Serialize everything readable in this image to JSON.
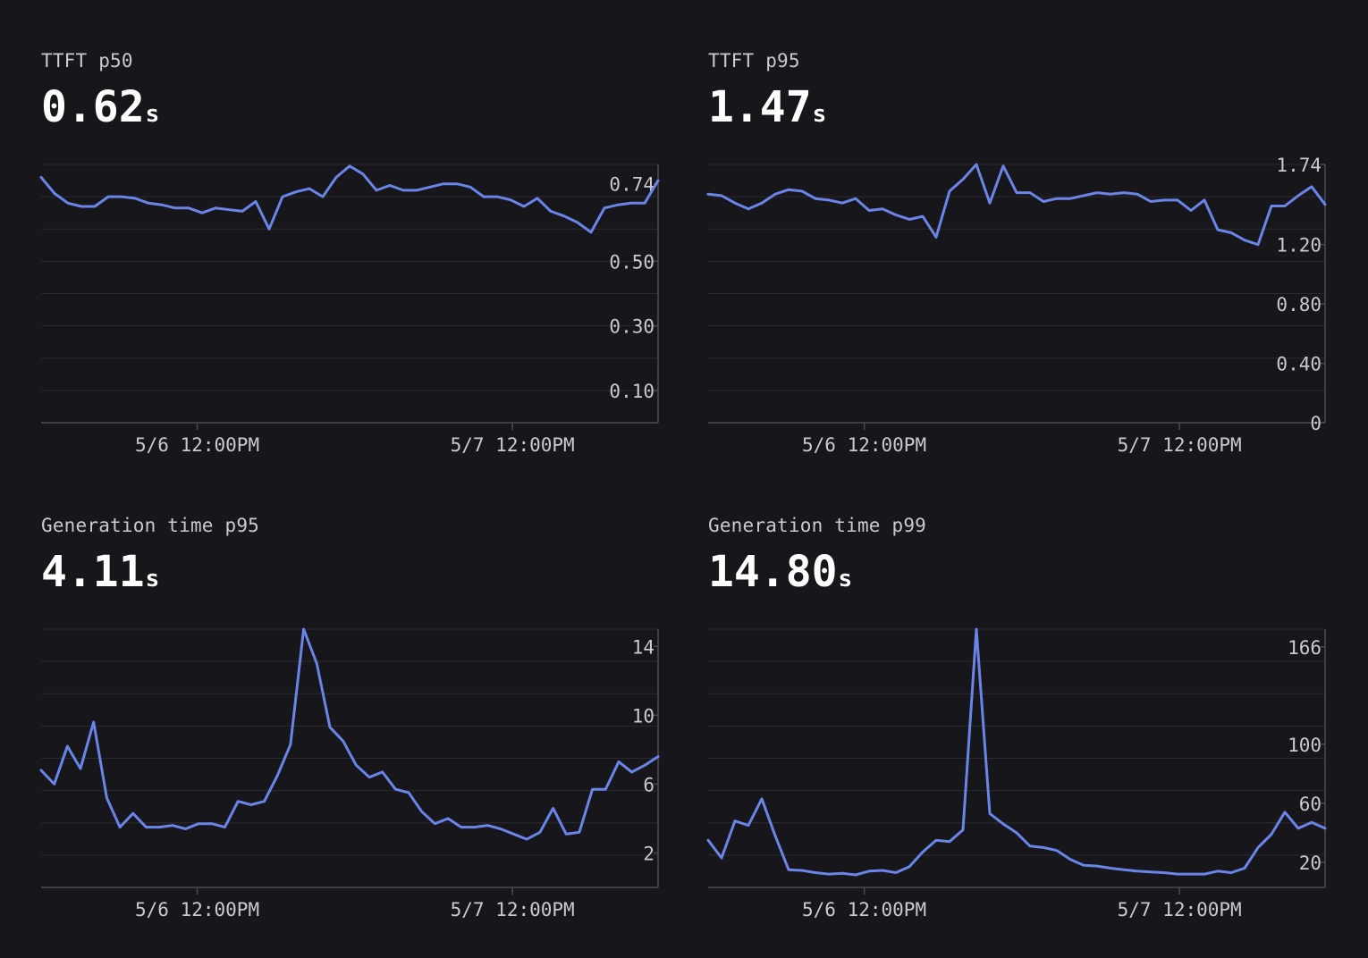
{
  "colors": {
    "background": "#16161b",
    "line": "#6b84e8",
    "grid": "#2a2a31",
    "axis": "#4a4a52",
    "tick_text": "#c9c9cf"
  },
  "panels": [
    {
      "title": "TTFT p50",
      "value": "0.62",
      "unit": "s"
    },
    {
      "title": "TTFT p95",
      "value": "1.47",
      "unit": "s"
    },
    {
      "title": "Generation time p95",
      "value": "4.11",
      "unit": "s"
    },
    {
      "title": "Generation time p99",
      "value": "14.80",
      "unit": "s"
    }
  ],
  "chart_data": [
    {
      "type": "line",
      "title": "TTFT p50",
      "x_tick_labels": [
        "5/6 12:00PM",
        "5/7 12:00PM"
      ],
      "y_ticks": [
        0.1,
        0.3,
        0.5,
        0.74
      ],
      "y_tick_labels": [
        "0.10",
        "0.30",
        "0.50",
        "0.74"
      ],
      "ylim": [
        0.0,
        0.8
      ],
      "grid": true,
      "series": [
        {
          "values": [
            0.76,
            0.71,
            0.68,
            0.67,
            0.67,
            0.7,
            0.7,
            0.695,
            0.68,
            0.675,
            0.665,
            0.665,
            0.65,
            0.665,
            0.66,
            0.655,
            0.685,
            0.6,
            0.7,
            0.715,
            0.725,
            0.7,
            0.76,
            0.795,
            0.77,
            0.72,
            0.735,
            0.72,
            0.72,
            0.73,
            0.74,
            0.74,
            0.73,
            0.7,
            0.7,
            0.69,
            0.67,
            0.695,
            0.655,
            0.64,
            0.62,
            0.59,
            0.665,
            0.675,
            0.68,
            0.68,
            0.75
          ]
        }
      ]
    },
    {
      "type": "line",
      "title": "TTFT p95",
      "x_tick_labels": [
        "5/6 12:00PM",
        "5/7 12:00PM"
      ],
      "y_ticks": [
        0,
        0.4,
        0.8,
        1.2,
        1.74
      ],
      "y_tick_labels": [
        "0",
        "0.40",
        "0.80",
        "1.20",
        "1.74"
      ],
      "ylim": [
        0.0,
        1.74
      ],
      "grid": true,
      "series": [
        {
          "values": [
            1.54,
            1.53,
            1.48,
            1.44,
            1.48,
            1.54,
            1.57,
            1.56,
            1.51,
            1.5,
            1.48,
            1.51,
            1.43,
            1.44,
            1.4,
            1.37,
            1.39,
            1.25,
            1.56,
            1.64,
            1.74,
            1.48,
            1.73,
            1.55,
            1.55,
            1.49,
            1.51,
            1.51,
            1.53,
            1.55,
            1.54,
            1.55,
            1.54,
            1.49,
            1.5,
            1.5,
            1.43,
            1.5,
            1.3,
            1.28,
            1.23,
            1.2,
            1.46,
            1.46,
            1.53,
            1.59,
            1.47
          ]
        }
      ]
    },
    {
      "type": "line",
      "title": "Generation time p95",
      "x_tick_labels": [
        "5/6 12:00PM",
        "5/7 12:00PM"
      ],
      "y_ticks": [
        2,
        6,
        10,
        14
      ],
      "y_tick_labels": [
        "2",
        "6",
        "10",
        "14"
      ],
      "ylim": [
        0,
        15
      ],
      "grid": true,
      "series": [
        {
          "values": [
            6.8,
            6.0,
            8.2,
            6.9,
            9.6,
            5.2,
            3.5,
            4.3,
            3.5,
            3.5,
            3.6,
            3.4,
            3.7,
            3.7,
            3.5,
            5.0,
            4.8,
            5.0,
            6.5,
            8.3,
            15.0,
            13.0,
            9.3,
            8.5,
            7.1,
            6.4,
            6.7,
            5.7,
            5.5,
            4.4,
            3.7,
            4.0,
            3.5,
            3.5,
            3.6,
            3.4,
            3.1,
            2.8,
            3.2,
            4.6,
            3.1,
            3.2,
            5.7,
            5.7,
            7.3,
            6.7,
            7.1,
            7.6
          ]
        }
      ]
    },
    {
      "type": "line",
      "title": "Generation time p99",
      "x_tick_labels": [
        "5/6 12:00PM",
        "5/7 12:00PM"
      ],
      "y_ticks": [
        20,
        60,
        100,
        166
      ],
      "y_tick_labels": [
        "20",
        "60",
        "100",
        "166"
      ],
      "ylim": [
        3,
        178
      ],
      "grid": true,
      "series": [
        {
          "values": [
            35,
            23,
            48,
            45,
            63,
            38,
            15,
            14.5,
            13,
            12,
            12.5,
            11.5,
            14,
            14.5,
            13,
            17,
            27,
            35,
            34,
            42,
            178,
            53,
            46,
            40,
            31,
            30,
            28,
            22,
            18,
            17.5,
            16,
            15,
            14,
            13.5,
            13,
            12,
            12,
            12,
            14,
            13,
            16,
            30,
            39,
            54,
            43,
            47,
            43
          ]
        }
      ]
    }
  ]
}
